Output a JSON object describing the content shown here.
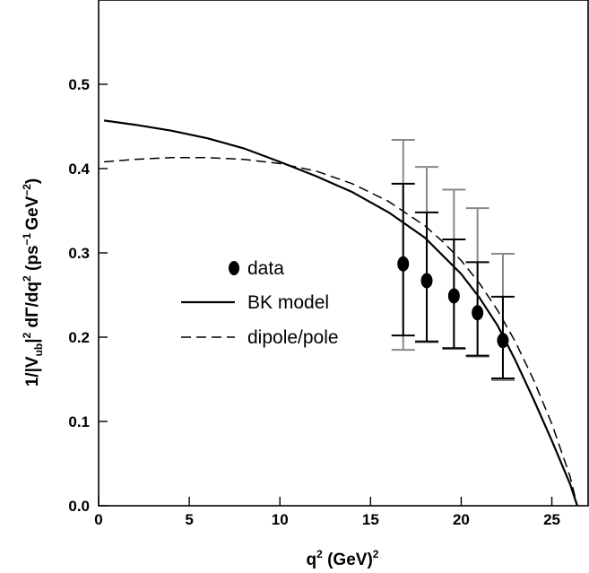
{
  "chart_data": {
    "type": "line",
    "xlabel": {
      "base": "q",
      "sup": "2",
      "rest": " (GeV)",
      "rest_sup": "2"
    },
    "ylabel": {
      "p1": "1/|V",
      "p1_sub": "ub",
      "p2": "|",
      "p2_sup": "2",
      "p3": " dΓ/dq",
      "p3_sup": "2",
      "p4": " (ps",
      "p4_sup": "−1",
      "p5": "GeV",
      "p5_sup": "−2",
      "p6": ")"
    },
    "xlim": [
      0,
      27
    ],
    "ylim": [
      0,
      0.6
    ],
    "x_ticks": [
      "0",
      "5",
      "10",
      "15",
      "20",
      "25"
    ],
    "y_ticks": [
      "0.0",
      "0.1",
      "0.2",
      "0.3",
      "0.4",
      "0.5"
    ],
    "legend": [
      {
        "label": "data",
        "kind": "marker"
      },
      {
        "label": "BK model",
        "kind": "solid"
      },
      {
        "label": "dipole/pole",
        "kind": "dashed"
      }
    ],
    "series": [
      {
        "name": "BK model",
        "style": "solid",
        "x": [
          0.3,
          2,
          4,
          6,
          8,
          10,
          12,
          14,
          16,
          18,
          20,
          21,
          22,
          23,
          24,
          25,
          26,
          26.4
        ],
        "y": [
          0.457,
          0.452,
          0.445,
          0.436,
          0.424,
          0.408,
          0.391,
          0.372,
          0.348,
          0.318,
          0.275,
          0.247,
          0.214,
          0.172,
          0.126,
          0.077,
          0.026,
          0.0
        ]
      },
      {
        "name": "dipole/pole",
        "style": "dashed",
        "x": [
          0.3,
          2,
          4,
          6,
          8,
          10,
          12,
          14,
          16,
          18,
          19,
          20,
          21,
          22,
          23,
          24,
          25,
          26,
          26.4
        ],
        "y": [
          0.408,
          0.411,
          0.413,
          0.413,
          0.411,
          0.406,
          0.397,
          0.382,
          0.361,
          0.332,
          0.313,
          0.291,
          0.264,
          0.232,
          0.194,
          0.149,
          0.097,
          0.035,
          0.0
        ]
      },
      {
        "name": "data",
        "style": "points",
        "x": [
          16.8,
          18.1,
          19.6,
          20.9,
          22.3
        ],
        "y": [
          0.287,
          0.267,
          0.249,
          0.229,
          0.196
        ],
        "err_inner_low": [
          0.202,
          0.195,
          0.187,
          0.178,
          0.151
        ],
        "err_inner_high": [
          0.382,
          0.348,
          0.316,
          0.289,
          0.248
        ],
        "err_outer_low": [
          0.185,
          0.194,
          0.186,
          0.177,
          0.149
        ],
        "err_outer_high": [
          0.434,
          0.402,
          0.375,
          0.353,
          0.299
        ]
      }
    ]
  }
}
